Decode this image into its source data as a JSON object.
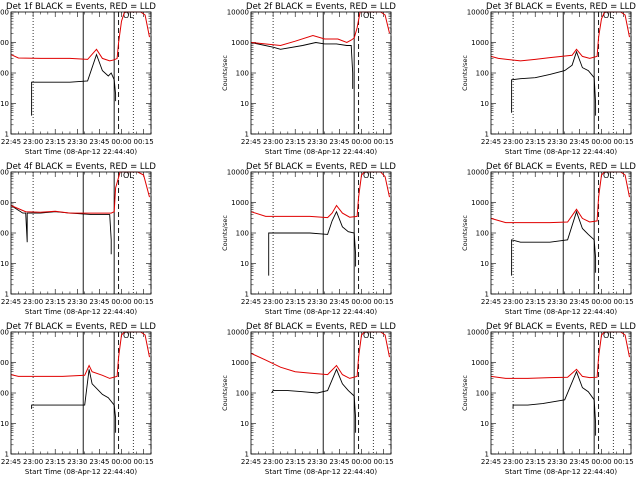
{
  "chart_data": {
    "common": {
      "type": "line",
      "y_scale": "log",
      "ylim": [
        1,
        10000
      ],
      "y_ticks": [
        {
          "v": 1,
          "label": "1"
        },
        {
          "v": 10,
          "label": "10"
        },
        {
          "v": 100,
          "label": "100"
        },
        {
          "v": 1000,
          "label": "1000"
        },
        {
          "v": 10000,
          "label": "10000"
        }
      ],
      "xlim": [
        0,
        95
      ],
      "x_ticks": [
        {
          "v": 0,
          "label": "22:45"
        },
        {
          "v": 15,
          "label": "23:00"
        },
        {
          "v": 30,
          "label": "23:15"
        },
        {
          "v": 45,
          "label": "23:30"
        },
        {
          "v": 60,
          "label": "23:45"
        },
        {
          "v": 75,
          "label": "00:00"
        },
        {
          "v": 90,
          "label": "00:15"
        }
      ],
      "ylabel": "Counts/sec",
      "xlabel": "Start Time (08-Apr-12 22:44:40)",
      "series_colors": {
        "events": "#000000",
        "lld": "#e00000"
      },
      "lines": {
        "dotted": [
          15,
          83
        ],
        "solid": [
          49,
          70
        ],
        "dashed": [
          73,
          95
        ]
      },
      "ol_label": "OL"
    },
    "panels": [
      {
        "title": "Det 1f BLACK = Events, RED = LLD",
        "red": [
          [
            0,
            400
          ],
          [
            5,
            310
          ],
          [
            20,
            300
          ],
          [
            40,
            300
          ],
          [
            52,
            280
          ],
          [
            58,
            600
          ],
          [
            62,
            300
          ],
          [
            67,
            250
          ],
          [
            70,
            270
          ],
          [
            72,
            300
          ],
          [
            73,
            1000
          ],
          [
            75,
            5000
          ],
          [
            77,
            12000
          ],
          [
            88,
            12000
          ],
          [
            91,
            8000
          ],
          [
            94,
            1500
          ]
        ],
        "black": [
          [
            14,
            4
          ],
          [
            14,
            50
          ],
          [
            20,
            50
          ],
          [
            40,
            50
          ],
          [
            52,
            55
          ],
          [
            58,
            400
          ],
          [
            62,
            120
          ],
          [
            66,
            80
          ],
          [
            68,
            100
          ],
          [
            70,
            60
          ],
          [
            71,
            20
          ],
          [
            71,
            12
          ]
        ]
      },
      {
        "title": "Det 2f BLACK = Events, RED = LLD",
        "red": [
          [
            0,
            1000
          ],
          [
            20,
            800
          ],
          [
            30,
            1100
          ],
          [
            42,
            1700
          ],
          [
            50,
            1300
          ],
          [
            59,
            1300
          ],
          [
            65,
            1000
          ],
          [
            68,
            1200
          ],
          [
            70,
            1400
          ],
          [
            72,
            3000
          ],
          [
            74,
            12000
          ],
          [
            88,
            12000
          ],
          [
            91,
            8000
          ],
          [
            94,
            2000
          ]
        ],
        "black": [
          [
            0,
            1000
          ],
          [
            15,
            700
          ],
          [
            20,
            600
          ],
          [
            35,
            800
          ],
          [
            44,
            1000
          ],
          [
            50,
            900
          ],
          [
            58,
            900
          ],
          [
            65,
            800
          ],
          [
            68,
            800
          ],
          [
            69,
            100
          ],
          [
            69,
            30
          ]
        ]
      },
      {
        "title": "Det 3f BLACK = Events, RED = LLD",
        "red": [
          [
            0,
            350
          ],
          [
            5,
            300
          ],
          [
            20,
            250
          ],
          [
            30,
            280
          ],
          [
            40,
            320
          ],
          [
            55,
            380
          ],
          [
            58,
            600
          ],
          [
            62,
            350
          ],
          [
            67,
            300
          ],
          [
            72,
            350
          ],
          [
            73,
            1500
          ],
          [
            75,
            6000
          ],
          [
            77,
            12000
          ],
          [
            88,
            12000
          ],
          [
            91,
            8000
          ],
          [
            94,
            1500
          ]
        ],
        "black": [
          [
            14,
            5
          ],
          [
            14,
            60
          ],
          [
            20,
            65
          ],
          [
            30,
            70
          ],
          [
            40,
            90
          ],
          [
            50,
            120
          ],
          [
            55,
            180
          ],
          [
            58,
            500
          ],
          [
            62,
            150
          ],
          [
            66,
            120
          ],
          [
            70,
            70
          ],
          [
            71,
            10
          ],
          [
            71,
            4
          ]
        ]
      },
      {
        "title": "Det 4f BLACK = Events, RED = LLD",
        "red": [
          [
            0,
            800
          ],
          [
            10,
            500
          ],
          [
            20,
            480
          ],
          [
            30,
            520
          ],
          [
            40,
            450
          ],
          [
            55,
            450
          ],
          [
            68,
            450
          ],
          [
            70,
            500
          ],
          [
            71,
            3000
          ],
          [
            74,
            12000
          ],
          [
            86,
            12000
          ],
          [
            90,
            8000
          ],
          [
            94,
            1500
          ]
        ],
        "black": [
          [
            0,
            800
          ],
          [
            8,
            450
          ],
          [
            10,
            450
          ],
          [
            11,
            50
          ],
          [
            11,
            450
          ],
          [
            20,
            450
          ],
          [
            30,
            500
          ],
          [
            40,
            450
          ],
          [
            55,
            400
          ],
          [
            65,
            400
          ],
          [
            67,
            400
          ],
          [
            68,
            60
          ],
          [
            68,
            20
          ]
        ]
      },
      {
        "title": "Det 5f BLACK = Events, RED = LLD",
        "red": [
          [
            0,
            500
          ],
          [
            10,
            350
          ],
          [
            25,
            350
          ],
          [
            40,
            350
          ],
          [
            52,
            320
          ],
          [
            55,
            450
          ],
          [
            58,
            800
          ],
          [
            62,
            450
          ],
          [
            67,
            330
          ],
          [
            72,
            350
          ],
          [
            73,
            1500
          ],
          [
            75,
            8000
          ],
          [
            77,
            12000
          ],
          [
            88,
            12000
          ],
          [
            91,
            7000
          ],
          [
            94,
            1500
          ]
        ],
        "black": [
          [
            12,
            4
          ],
          [
            12,
            100
          ],
          [
            20,
            100
          ],
          [
            40,
            100
          ],
          [
            52,
            90
          ],
          [
            55,
            250
          ],
          [
            58,
            500
          ],
          [
            62,
            160
          ],
          [
            66,
            110
          ],
          [
            70,
            100
          ],
          [
            71,
            20
          ],
          [
            71,
            8
          ]
        ]
      },
      {
        "title": "Det 6f BLACK = Events, RED = LLD",
        "red": [
          [
            0,
            300
          ],
          [
            10,
            220
          ],
          [
            25,
            220
          ],
          [
            40,
            220
          ],
          [
            52,
            230
          ],
          [
            58,
            600
          ],
          [
            62,
            300
          ],
          [
            67,
            230
          ],
          [
            72,
            250
          ],
          [
            73,
            1500
          ],
          [
            75,
            8000
          ],
          [
            77,
            12000
          ],
          [
            88,
            12000
          ],
          [
            91,
            8000
          ],
          [
            94,
            1500
          ]
        ],
        "black": [
          [
            14,
            4
          ],
          [
            14,
            60
          ],
          [
            20,
            50
          ],
          [
            40,
            50
          ],
          [
            52,
            60
          ],
          [
            58,
            500
          ],
          [
            62,
            140
          ],
          [
            66,
            90
          ],
          [
            70,
            60
          ],
          [
            71,
            15
          ],
          [
            71,
            5
          ]
        ]
      },
      {
        "title": "Det 7f BLACK = Events, RED = LLD",
        "red": [
          [
            0,
            400
          ],
          [
            5,
            350
          ],
          [
            20,
            350
          ],
          [
            35,
            350
          ],
          [
            50,
            380
          ],
          [
            53,
            800
          ],
          [
            55,
            500
          ],
          [
            62,
            380
          ],
          [
            67,
            300
          ],
          [
            72,
            350
          ],
          [
            73,
            1500
          ],
          [
            75,
            8000
          ],
          [
            77,
            12000
          ],
          [
            88,
            12000
          ],
          [
            91,
            8000
          ],
          [
            94,
            1500
          ]
        ],
        "black": [
          [
            14,
            30
          ],
          [
            14,
            40
          ],
          [
            20,
            40
          ],
          [
            35,
            40
          ],
          [
            50,
            40
          ],
          [
            53,
            600
          ],
          [
            55,
            200
          ],
          [
            62,
            90
          ],
          [
            66,
            70
          ],
          [
            70,
            40
          ],
          [
            71,
            15
          ],
          [
            71,
            5
          ]
        ]
      },
      {
        "title": "Det 8f BLACK = Events, RED = LLD",
        "red": [
          [
            0,
            2000
          ],
          [
            10,
            1200
          ],
          [
            20,
            700
          ],
          [
            30,
            500
          ],
          [
            40,
            450
          ],
          [
            52,
            400
          ],
          [
            58,
            800
          ],
          [
            62,
            400
          ],
          [
            67,
            300
          ],
          [
            72,
            350
          ],
          [
            73,
            1500
          ],
          [
            75,
            8000
          ],
          [
            77,
            12000
          ],
          [
            88,
            12000
          ],
          [
            91,
            8000
          ],
          [
            94,
            1500
          ]
        ],
        "black": [
          [
            14,
            100
          ],
          [
            15,
            120
          ],
          [
            25,
            120
          ],
          [
            35,
            110
          ],
          [
            45,
            100
          ],
          [
            52,
            120
          ],
          [
            58,
            600
          ],
          [
            62,
            200
          ],
          [
            66,
            120
          ],
          [
            70,
            80
          ],
          [
            71,
            15
          ],
          [
            71,
            5
          ]
        ]
      },
      {
        "title": "Det 9f BLACK = Events, RED = LLD",
        "red": [
          [
            0,
            350
          ],
          [
            10,
            300
          ],
          [
            25,
            300
          ],
          [
            40,
            320
          ],
          [
            52,
            330
          ],
          [
            58,
            600
          ],
          [
            62,
            350
          ],
          [
            67,
            320
          ],
          [
            72,
            330
          ],
          [
            73,
            1500
          ],
          [
            75,
            8000
          ],
          [
            77,
            12000
          ],
          [
            88,
            12000
          ],
          [
            91,
            8000
          ],
          [
            94,
            1500
          ]
        ],
        "black": [
          [
            15,
            30
          ],
          [
            15,
            40
          ],
          [
            25,
            40
          ],
          [
            35,
            45
          ],
          [
            50,
            60
          ],
          [
            58,
            500
          ],
          [
            62,
            150
          ],
          [
            66,
            110
          ],
          [
            70,
            60
          ],
          [
            71,
            10
          ],
          [
            71,
            4
          ]
        ]
      }
    ]
  }
}
